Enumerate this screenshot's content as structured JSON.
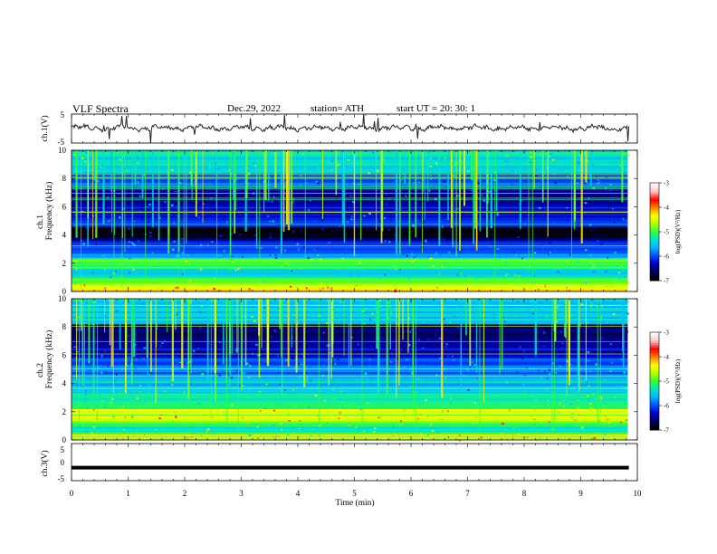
{
  "header": {
    "title": "VLF  Spectra",
    "date": "Dec.29, 2022",
    "station": "station= ATH",
    "start": "start  UT  =    20: 30: 1"
  },
  "colors": {
    "noise_line": "#222222",
    "colormap": [
      "#000000",
      "#00005a",
      "#0000c8",
      "#0050ff",
      "#00b4ff",
      "#00e6c8",
      "#32ff32",
      "#b4ff00",
      "#ffff00",
      "#ff8000",
      "#ff0000",
      "#ffc0c0",
      "#ffffff"
    ]
  },
  "chart_data": [
    {
      "type": "line",
      "panel": "ch1-waveform",
      "ylabel": "ch.1(V)",
      "ylim": [
        -5,
        5
      ],
      "yticks": [
        "5",
        "-5"
      ],
      "xlim": [
        0,
        10
      ],
      "baseline_v": 0.2,
      "series_note": "noisy waveform with sporadic spikes"
    },
    {
      "type": "heatmap",
      "panel": "ch1-spectrogram",
      "ylabel_channel": "ch.1",
      "ylabel": "Frequency  (kHz)",
      "ylim": [
        0,
        10
      ],
      "yticks": [
        "0",
        "2",
        "4",
        "6",
        "8",
        "10"
      ],
      "xlim": [
        0,
        9.83
      ],
      "colorbar": {
        "label": "log(PSD)(V²/Hz)",
        "range": [
          -7,
          -3
        ],
        "ticks": [
          "-3",
          "-4",
          "-5",
          "-6",
          "-7"
        ]
      },
      "bands_khz": [
        {
          "f0": 0.0,
          "f1": 0.5,
          "level": -4.3
        },
        {
          "f0": 0.5,
          "f1": 1.0,
          "level": -5.0
        },
        {
          "f0": 1.0,
          "f1": 1.6,
          "level": -5.6
        },
        {
          "f0": 1.6,
          "f1": 2.4,
          "level": -5.0
        },
        {
          "f0": 2.4,
          "f1": 3.2,
          "level": -5.9
        },
        {
          "f0": 3.2,
          "f1": 3.7,
          "level": -6.2
        },
        {
          "f0": 3.7,
          "f1": 4.6,
          "level": -6.9
        },
        {
          "f0": 4.6,
          "f1": 6.0,
          "level": -6.2
        },
        {
          "f0": 6.0,
          "f1": 7.3,
          "level": -6.4
        },
        {
          "f0": 7.3,
          "f1": 8.4,
          "level": -6.0
        },
        {
          "f0": 8.4,
          "f1": 10.0,
          "level": -5.4
        }
      ]
    },
    {
      "type": "heatmap",
      "panel": "ch2-spectrogram",
      "ylabel_channel": "ch.2",
      "ylabel": "Frequency  (kHz)",
      "ylim": [
        0,
        10
      ],
      "yticks": [
        "0",
        "2",
        "4",
        "6",
        "8",
        "10"
      ],
      "xlim": [
        0,
        9.83
      ],
      "colorbar": {
        "label": "log(PSD)(V²/Hz)",
        "range": [
          -7,
          -3
        ],
        "ticks": [
          "-3",
          "-4",
          "-5",
          "-6",
          "-7"
        ]
      },
      "bands_khz": [
        {
          "f0": 0.0,
          "f1": 0.4,
          "level": -4.5
        },
        {
          "f0": 0.4,
          "f1": 1.2,
          "level": -5.2
        },
        {
          "f0": 1.2,
          "f1": 2.2,
          "level": -4.6
        },
        {
          "f0": 2.2,
          "f1": 3.3,
          "level": -5.3
        },
        {
          "f0": 3.3,
          "f1": 4.4,
          "level": -5.6
        },
        {
          "f0": 4.4,
          "f1": 5.8,
          "level": -5.9
        },
        {
          "f0": 5.8,
          "f1": 7.0,
          "level": -6.4
        },
        {
          "f0": 7.0,
          "f1": 8.2,
          "level": -6.7
        },
        {
          "f0": 8.2,
          "f1": 10.0,
          "level": -5.5
        }
      ]
    },
    {
      "type": "line",
      "panel": "ch3-waveform",
      "ylabel": "ch.3(V)",
      "ylim": [
        -5,
        5
      ],
      "yticks": [
        "5",
        "0",
        "-5"
      ],
      "xlim": [
        0,
        10
      ],
      "baseline_v": -1.5,
      "series_note": "flat trace"
    }
  ],
  "xaxis": {
    "label": "Time  (min)",
    "range": [
      0,
      10
    ],
    "ticks": [
      "0",
      "1",
      "2",
      "3",
      "4",
      "5",
      "6",
      "7",
      "8",
      "9",
      "10"
    ]
  }
}
